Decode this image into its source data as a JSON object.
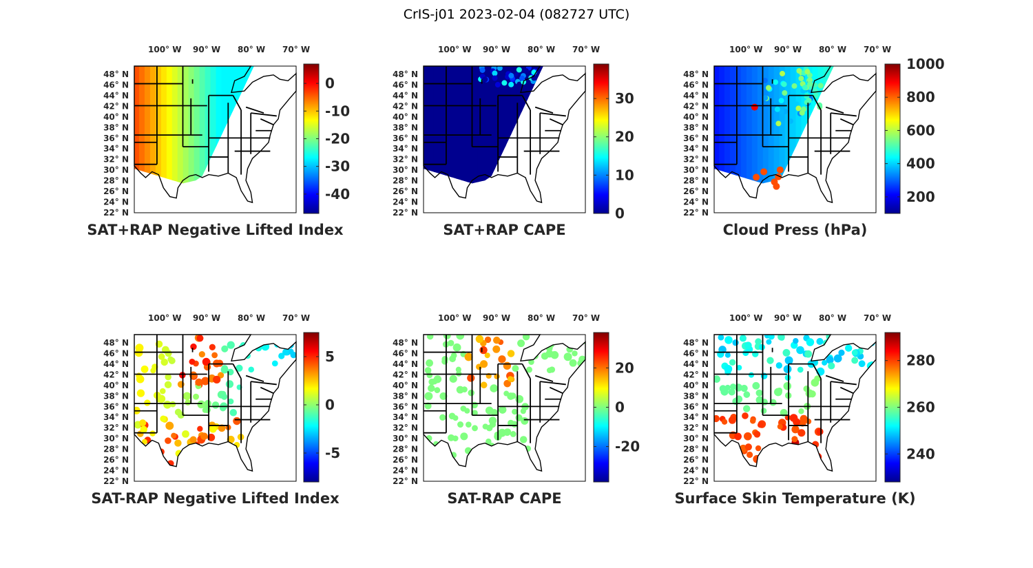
{
  "figure": {
    "title": "CrIS-j01 2023-02-04 (082727 UTC)"
  },
  "colormap": [
    "#00008f",
    "#0000ff",
    "#0080ff",
    "#00ffff",
    "#80ff80",
    "#ffff00",
    "#ff8000",
    "#ff0000",
    "#800000"
  ],
  "map_style": {
    "outline_color": "#000000",
    "frame_color": "#000000"
  },
  "chart_data": [
    {
      "type": "heatmap",
      "id": "p1",
      "title": "SAT+RAP Negative Lifted Index",
      "lat_ticks": [
        "48",
        "46",
        "44",
        "42",
        "40",
        "38",
        "36",
        "34",
        "32",
        "30",
        "28",
        "26",
        "24",
        "22"
      ],
      "lat_suffix": "N",
      "lon_ticks": [
        "100",
        "90",
        "80",
        "70"
      ],
      "lon_suffix": "W",
      "colorbar": {
        "range": [
          -47,
          7
        ],
        "ticks": [
          0,
          -10,
          -20,
          -30,
          -40
        ],
        "tick_labels": [
          "0",
          "-10",
          "-20",
          "-30",
          "-40"
        ]
      },
      "field": "swath",
      "base_value": -14,
      "east_value": -28,
      "features": [
        {
          "region": "west",
          "value": -4
        },
        {
          "region": "central",
          "value": -16
        },
        {
          "region": "east",
          "value": -27
        }
      ]
    },
    {
      "type": "heatmap",
      "id": "p2",
      "title": "SAT+RAP CAPE",
      "lat_ticks": [
        "48",
        "46",
        "44",
        "42",
        "40",
        "38",
        "36",
        "34",
        "32",
        "30",
        "28",
        "26",
        "24",
        "22"
      ],
      "lat_suffix": "N",
      "lon_ticks": [
        "100",
        "90",
        "80",
        "70"
      ],
      "lon_suffix": "W",
      "colorbar": {
        "range": [
          0,
          39
        ],
        "ticks": [
          30,
          20,
          10,
          0
        ],
        "tick_labels": [
          "30",
          "20",
          "10",
          "0"
        ]
      },
      "field": "swath",
      "base_value": 0,
      "east_value": 0,
      "features": [
        {
          "region": "north-east",
          "value": 12
        }
      ]
    },
    {
      "type": "heatmap",
      "id": "p3",
      "title": "Cloud Press (hPa)",
      "lat_ticks": [
        "48",
        "46",
        "44",
        "42",
        "40",
        "38",
        "36",
        "34",
        "32",
        "30",
        "28",
        "26",
        "24",
        "22"
      ],
      "lat_suffix": "N",
      "lon_ticks": [
        "100",
        "90",
        "80",
        "70"
      ],
      "lon_suffix": "W",
      "colorbar": {
        "range": [
          100,
          1000
        ],
        "ticks": [
          1000,
          800,
          600,
          400,
          200
        ],
        "tick_labels": [
          "1000",
          "800",
          "600",
          "400",
          "200"
        ]
      },
      "field": "swath-clouds",
      "base_value": 230,
      "east_value": 500,
      "features": [
        {
          "region": "central-spot",
          "value": 900
        },
        {
          "region": "gulf",
          "value": 820
        }
      ]
    },
    {
      "type": "heatmap",
      "id": "p4",
      "title": "SAT-RAP Negative Lifted Index",
      "lat_ticks": [
        "48",
        "46",
        "44",
        "42",
        "40",
        "38",
        "36",
        "34",
        "32",
        "30",
        "28",
        "26",
        "24",
        "22"
      ],
      "lat_suffix": "N",
      "lon_ticks": [
        "100",
        "90",
        "80",
        "70"
      ],
      "lon_suffix": "W",
      "colorbar": {
        "range": [
          -8,
          7.5
        ],
        "ticks": [
          5,
          0,
          -5
        ],
        "tick_labels": [
          "5",
          "0",
          "-5"
        ]
      },
      "field": "scatter",
      "base_value": 2,
      "east_value": -3,
      "features": [
        {
          "region": "north-central",
          "value": 5
        },
        {
          "region": "south",
          "value": 3
        }
      ]
    },
    {
      "type": "heatmap",
      "id": "p5",
      "title": "SAT-RAP CAPE",
      "lat_ticks": [
        "48",
        "46",
        "44",
        "42",
        "40",
        "38",
        "36",
        "34",
        "32",
        "30",
        "28",
        "26",
        "24",
        "22"
      ],
      "lat_suffix": "N",
      "lon_ticks": [
        "100",
        "90",
        "80",
        "70"
      ],
      "lon_suffix": "W",
      "colorbar": {
        "range": [
          -38,
          38
        ],
        "ticks": [
          20,
          0,
          -20
        ],
        "tick_labels": [
          "20",
          "0",
          "-20"
        ]
      },
      "field": "scatter",
      "base_value": 0,
      "east_value": 0,
      "features": [
        {
          "region": "north-central",
          "value": 22
        }
      ]
    },
    {
      "type": "heatmap",
      "id": "p6",
      "title": "Surface Skin Temperature (K)",
      "lat_ticks": [
        "48",
        "46",
        "44",
        "42",
        "40",
        "38",
        "36",
        "34",
        "32",
        "30",
        "28",
        "26",
        "24",
        "22"
      ],
      "lat_suffix": "N",
      "lon_ticks": [
        "100",
        "90",
        "80",
        "70"
      ],
      "lon_suffix": "W",
      "colorbar": {
        "range": [
          228,
          292
        ],
        "ticks": [
          280,
          260,
          240
        ],
        "tick_labels": [
          "280",
          "260",
          "240"
        ]
      },
      "field": "scatter",
      "base_value": 258,
      "east_value": 262,
      "features": [
        {
          "region": "south",
          "value": 280
        },
        {
          "region": "gulf-coast",
          "value": 288
        },
        {
          "region": "north",
          "value": 252
        }
      ]
    }
  ]
}
